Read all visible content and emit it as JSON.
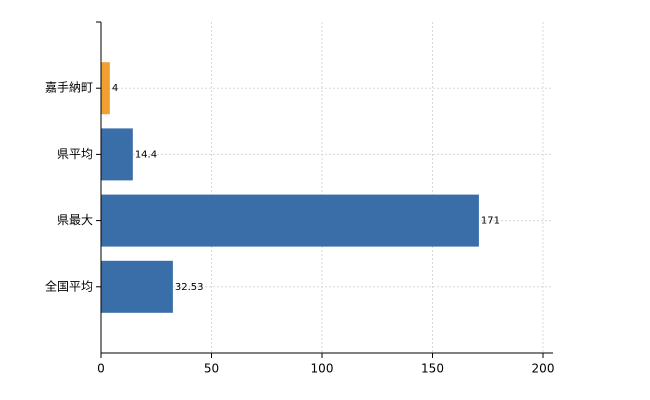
{
  "chart_data": {
    "type": "hbar",
    "categories": [
      "嘉手納町",
      "県平均",
      "県最大",
      "全国平均"
    ],
    "values": [
      4,
      14.4,
      171,
      32.53
    ],
    "colors": [
      "#f0a030",
      "#3a6ea8",
      "#3a6ea8",
      "#3a6ea8"
    ],
    "xlim": [
      0,
      200
    ],
    "xticks": [
      0,
      50,
      100,
      150,
      200
    ],
    "grid": true
  }
}
